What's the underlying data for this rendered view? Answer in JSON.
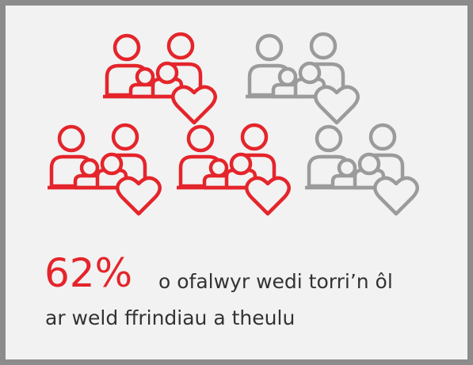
{
  "stat": "62%",
  "caption_line1": "o ofalwyr wedi torri’n ôl",
  "caption_line2": "ar weld ffrindiau a theulu"
}
